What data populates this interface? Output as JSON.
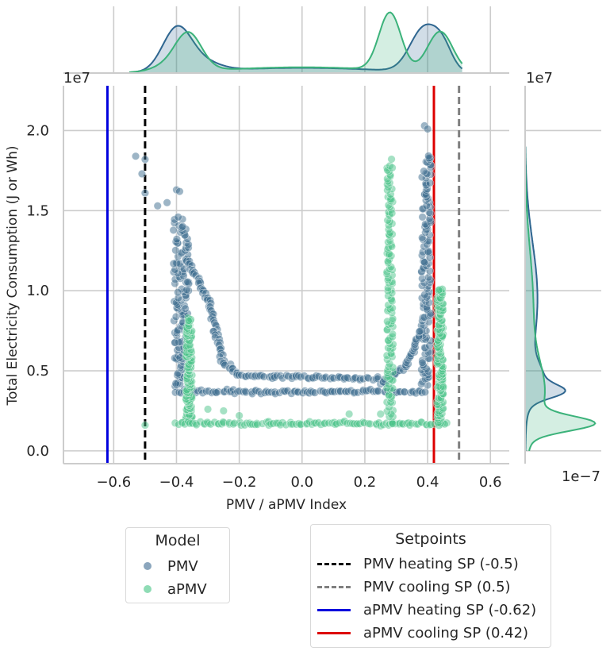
{
  "chart_data": {
    "type": "scatter",
    "xlabel": "PMV / aPMV Index",
    "ylabel": "Total Electricity Consumption (J or Wh)",
    "xlim": [
      -0.76,
      0.66
    ],
    "ylim": [
      -0.08,
      2.28
    ],
    "y_scale_label": "1e7",
    "marg_x_density_scale_label": "1e7",
    "marg_y_density_scale_label": "1e−7",
    "xticks": [
      "−0.6",
      "−0.4",
      "−0.2",
      "0.0",
      "0.2",
      "0.4",
      "0.6"
    ],
    "xtick_values": [
      -0.6,
      -0.4,
      -0.2,
      0.0,
      0.2,
      0.4,
      0.6
    ],
    "yticks": [
      "0.0",
      "0.5",
      "1.0",
      "1.5",
      "2.0"
    ],
    "ytick_values": [
      0.0,
      0.5,
      1.0,
      1.5,
      2.0
    ],
    "grid": true,
    "series": [
      {
        "name": "PMV",
        "color": "#3b6b8e",
        "groups": [
          {
            "shape": "band",
            "x": [
              -0.41,
              -0.36
            ],
            "y": [
              0.36,
              1.45
            ]
          },
          {
            "shape": "line",
            "x": [
              -0.37,
              -0.29,
              -0.25,
              -0.2,
              0.25
            ],
            "y": [
              1.2,
              0.9,
              0.55,
              0.47,
              0.45
            ]
          },
          {
            "shape": "line",
            "x": [
              -0.4,
              0.4
            ],
            "y": [
              0.37,
              0.37
            ]
          },
          {
            "shape": "band",
            "x": [
              0.38,
              0.41
            ],
            "y": [
              0.4,
              1.85
            ]
          },
          {
            "shape": "line",
            "x": [
              0.25,
              0.33,
              0.38
            ],
            "y": [
              0.42,
              0.52,
              0.75
            ]
          },
          {
            "shape": "points",
            "x": [
              -0.53,
              -0.51,
              -0.5,
              -0.5,
              -0.43,
              -0.46,
              -0.4,
              -0.39,
              0.39,
              0.4
            ],
            "y": [
              1.84,
              1.73,
              1.61,
              1.82,
              1.55,
              1.53,
              1.63,
              1.62,
              2.03,
              2.01
            ]
          }
        ]
      },
      {
        "name": "aPMV",
        "color": "#4cc38a",
        "groups": [
          {
            "shape": "band",
            "x": [
              -0.37,
              -0.35
            ],
            "y": [
              0.18,
              0.82
            ]
          },
          {
            "shape": "line",
            "x": [
              -0.4,
              0.47
            ],
            "y": [
              0.17,
              0.17
            ]
          },
          {
            "shape": "band",
            "x": [
              0.27,
              0.29
            ],
            "y": [
              0.17,
              1.8
            ]
          },
          {
            "shape": "band",
            "x": [
              0.43,
              0.45
            ],
            "y": [
              0.17,
              1.02
            ]
          },
          {
            "shape": "points",
            "x": [
              -0.5,
              -0.3,
              -0.25,
              -0.2,
              0.15,
              0.25,
              0.45
            ],
            "y": [
              0.16,
              0.26,
              0.25,
              0.22,
              0.23,
              0.23,
              0.4
            ]
          }
        ]
      }
    ],
    "marginal_x": [
      {
        "name": "PMV",
        "color": "#2f6690",
        "peaks": [
          {
            "x": -0.4,
            "sd": 0.045,
            "h": 0.78
          },
          {
            "x": -0.33,
            "sd": 0.06,
            "h": 0.2
          },
          {
            "x": 0.0,
            "sd": 0.25,
            "h": 0.1
          },
          {
            "x": 0.39,
            "sd": 0.045,
            "h": 0.85
          },
          {
            "x": 0.45,
            "sd": 0.03,
            "h": 0.35
          }
        ]
      },
      {
        "name": "aPMV",
        "color": "#3bb27a",
        "peaks": [
          {
            "x": -0.36,
            "sd": 0.04,
            "h": 0.5
          },
          {
            "x": -0.39,
            "sd": 0.06,
            "h": 0.2
          },
          {
            "x": 0.0,
            "sd": 0.25,
            "h": 0.1
          },
          {
            "x": 0.28,
            "sd": 0.035,
            "h": 1.0
          },
          {
            "x": 0.44,
            "sd": 0.04,
            "h": 0.7
          }
        ]
      }
    ],
    "marginal_y": [
      {
        "name": "PMV",
        "color": "#2f6690",
        "peaks": [
          {
            "y": 0.37,
            "sd": 0.04,
            "h": 0.62
          },
          {
            "y": 0.44,
            "sd": 0.1,
            "h": 0.35
          },
          {
            "y": 0.95,
            "sd": 0.35,
            "h": 0.3
          }
        ]
      },
      {
        "name": "aPMV",
        "color": "#3bb27a",
        "peaks": [
          {
            "y": 0.17,
            "sd": 0.045,
            "h": 1.0
          },
          {
            "y": 0.35,
            "sd": 0.2,
            "h": 0.3
          },
          {
            "y": 0.9,
            "sd": 0.35,
            "h": 0.14
          }
        ]
      }
    ],
    "vlines": [
      {
        "label": "PMV heating SP (-0.5)",
        "x": -0.5,
        "color": "#000000",
        "dash": true
      },
      {
        "label": "PMV cooling SP (0.5)",
        "x": 0.5,
        "color": "#808080",
        "dash": true
      },
      {
        "label": "aPMV heating SP (-0.62)",
        "x": -0.62,
        "color": "#0000dd",
        "dash": false
      },
      {
        "label": "aPMV cooling SP (0.42)",
        "x": 0.42,
        "color": "#dd0000",
        "dash": false
      }
    ],
    "legends": [
      {
        "title": "Model",
        "placement": "bottom-left",
        "entries": [
          {
            "label": "PMV",
            "marker": "dot",
            "color": "#8ba6bd"
          },
          {
            "label": "aPMV",
            "marker": "dot",
            "color": "#8fdcb5"
          }
        ]
      },
      {
        "title": "Setpoints",
        "placement": "bottom-right",
        "entries": [
          {
            "label": "PMV heating SP (-0.5)",
            "marker": "dash",
            "color": "#000000"
          },
          {
            "label": "PMV cooling SP (0.5)",
            "marker": "dash",
            "color": "#808080"
          },
          {
            "label": "aPMV heating SP (-0.62)",
            "marker": "line",
            "color": "#0000dd"
          },
          {
            "label": "aPMV cooling SP (0.42)",
            "marker": "line",
            "color": "#dd0000"
          }
        ]
      }
    ]
  }
}
